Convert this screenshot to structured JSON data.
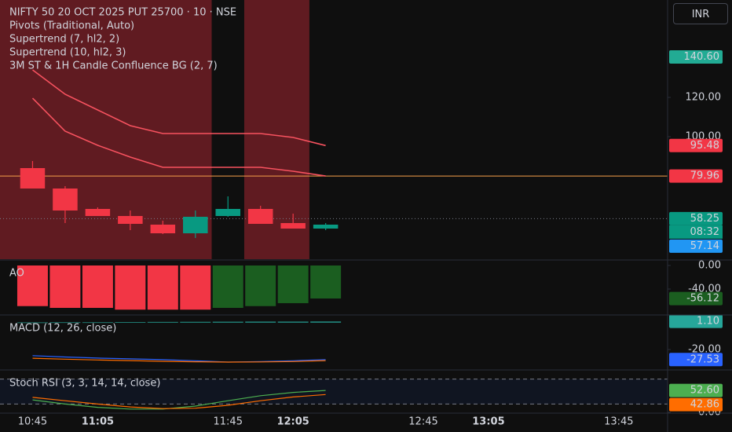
{
  "chart_data": [
    {
      "type": "candlestick",
      "title": "NIFTY 50 20 OCT 2025 PUT 25700 · 10 · NSE",
      "indicator": "Pivots (Traditional, Auto)",
      "currency": "INR",
      "x": [
        "10:45",
        "10:55",
        "11:05",
        "11:15",
        "11:25",
        "11:35",
        "11:45",
        "11:55",
        "12:05",
        "12:15"
      ],
      "open": [
        84,
        73.6,
        63.2,
        59.6,
        55.2,
        50.8,
        59.6,
        63.2,
        56,
        53.2
      ],
      "high": [
        87.6,
        74.8,
        64,
        62.4,
        57.2,
        62.4,
        69.6,
        64.8,
        60.8,
        56
      ],
      "low": [
        73.6,
        56,
        59.6,
        52.4,
        50.4,
        48.4,
        59.2,
        55.6,
        53.2,
        52.4
      ],
      "close": [
        73.6,
        62.4,
        59.6,
        55.6,
        50.8,
        59.2,
        63.2,
        55.6,
        53.2,
        55.2
      ],
      "up_color": "#089981",
      "down_color": "#f23645",
      "series": [
        {
          "name": "Supertrend (7, hl2, 2)",
          "color": "#f7525f",
          "values": [
            119.6,
            102.8,
            95.6,
            89.6,
            84.4,
            84.4,
            84.4,
            84.4,
            82.4,
            79.96
          ]
        },
        {
          "name": "Supertrend (10, hl2, 3)",
          "color": "#f7525f",
          "values": [
            134,
            121.6,
            113.6,
            105.6,
            101.6,
            101.6,
            101.6,
            101.6,
            99.6,
            95.48
          ]
        }
      ],
      "background": {
        "name": "3M ST & 1H Candle Confluence BG (2, 7)",
        "color": "#b22833",
        "ranges": [
          [
            "10:30",
            "11:40"
          ],
          [
            "11:50",
            "12:10"
          ]
        ]
      },
      "ylim": [
        37.6,
        169.6
      ],
      "yticks": [
        {
          "value": 120,
          "label": "120.00"
        },
        {
          "value": 100,
          "label": "100.00"
        }
      ],
      "price_labels": [
        {
          "value": 140.6,
          "label": "140.60",
          "color": "#22ab94"
        },
        {
          "value": 95.48,
          "label": "95.48",
          "color": "#f23645"
        },
        {
          "value": 79.96,
          "label": "79.96",
          "color": "#f23645"
        },
        {
          "value": 58.25,
          "label": "58.25",
          "color": "#089981"
        },
        {
          "value": 57.14,
          "label": "57.14",
          "color": "#2196f3"
        }
      ],
      "countdown": "08:32",
      "hline_color": "#f7a04b",
      "xlim": [
        "10:35",
        "14:00"
      ],
      "xticks": [
        "10:45",
        "11:05",
        "11:45",
        "12:05",
        "12:45",
        "13:05",
        "13:45"
      ]
    },
    {
      "type": "bar",
      "title": "AO",
      "values": [
        -69,
        -72,
        -72,
        -75,
        -75,
        -75,
        -72,
        -69,
        -64,
        -56.12
      ],
      "value_labels": [
        null,
        null,
        null,
        null,
        null,
        null,
        null,
        null,
        null,
        "-56.12"
      ],
      "colors": [
        "#f23645",
        "#f23645",
        "#f23645",
        "#f23645",
        "#f23645",
        "#f23645",
        "#1b5e20",
        "#1b5e20",
        "#1b5e20",
        "#1b5e20"
      ],
      "ylim": [
        -82.7,
        8
      ],
      "yticks": [
        {
          "value": 0,
          "label": "0.00"
        },
        {
          "value": -40,
          "label": "-40.00"
        }
      ]
    },
    {
      "type": "line",
      "title": "MACD (12, 26, close)",
      "histogram": {
        "color": "#26a69a",
        "values": [
          0.4,
          0.5,
          0.5,
          0.6,
          0.7,
          0.8,
          0.9,
          1,
          1,
          1.1
        ],
        "value_labels": [
          null,
          null,
          null,
          null,
          null,
          null,
          null,
          null,
          null,
          "1.10"
        ]
      },
      "series": [
        {
          "color": "#2962ff",
          "values": [
            -24.6,
            -25.6,
            -26.4,
            -27,
            -27.6,
            -28.4,
            -29.4,
            -29,
            -28.4,
            -27.53
          ],
          "value_labels": [
            null,
            null,
            null,
            null,
            null,
            null,
            null,
            null,
            null,
            "-27.53"
          ]
        },
        {
          "color": "#ff6d00",
          "values": [
            -26.5,
            -27.2,
            -27.8,
            -28.3,
            -28.8,
            -29.2,
            -29.4,
            -29.3,
            -29,
            -28.3
          ]
        }
      ],
      "ylim": [
        -34.7,
        5.3
      ],
      "yticks": [
        {
          "value": -20,
          "label": "-20.00"
        }
      ]
    },
    {
      "type": "line",
      "title": "Stoch RSI (3, 3, 14, 14, close)",
      "series": [
        {
          "color": "#4caf50",
          "values": [
            30,
            20,
            12,
            8,
            8,
            15,
            28,
            40,
            48,
            52.6
          ],
          "value_labels": [
            null,
            null,
            null,
            null,
            null,
            null,
            null,
            null,
            null,
            "52.60"
          ]
        },
        {
          "color": "#ff6d00",
          "values": [
            36,
            28,
            20,
            13,
            9,
            10,
            17,
            28,
            37,
            42.86
          ],
          "value_labels": [
            null,
            null,
            null,
            null,
            null,
            null,
            null,
            null,
            null,
            "42.86"
          ]
        }
      ],
      "bands": [
        20,
        80
      ],
      "ylim": [
        0,
        100
      ],
      "yticks": [
        {
          "value": 0,
          "label": "0.00"
        }
      ]
    }
  ]
}
